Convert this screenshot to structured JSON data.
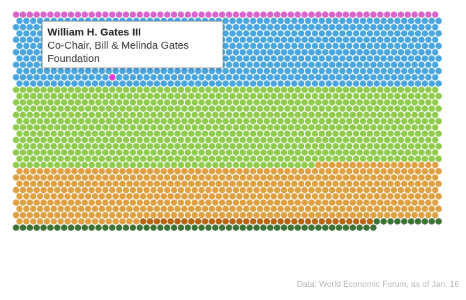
{
  "chart_data": {
    "type": "dot-matrix",
    "unit": "one dot per participant",
    "columns": 62,
    "groups": [
      {
        "color": "#d865c9",
        "count": 62
      },
      {
        "color": "#4aa6df",
        "count": 682
      },
      {
        "color": "#8fcb4c",
        "count": 788
      },
      {
        "color": "#dfa041",
        "count": 532
      },
      {
        "color": "#b5650f",
        "count": 34
      },
      {
        "color": "#3c7233",
        "count": 63
      }
    ],
    "highlight": {
      "color": "#e43bd9",
      "group_index": 1,
      "column": 14,
      "row": 9
    }
  },
  "tooltip": {
    "name": "William H. Gates III",
    "title": "Co-Chair, Bill & Melinda Gates Foundation"
  },
  "source": "Data: World Economic Forum, as of Jan. 16"
}
